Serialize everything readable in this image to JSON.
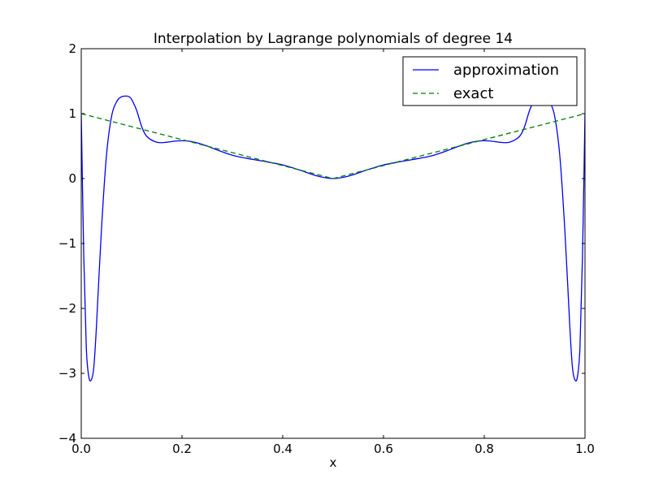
{
  "chart_data": {
    "type": "line",
    "title": "Interpolation by Lagrange polynomials of degree 14",
    "xlabel": "x",
    "ylabel": "",
    "xlim": [
      0.0,
      1.0
    ],
    "ylim": [
      -4,
      2
    ],
    "x_ticks": [
      "0.0",
      "0.2",
      "0.4",
      "0.6",
      "0.8",
      "1.0"
    ],
    "y_ticks": [
      "2",
      "1",
      "0",
      "−1",
      "−2",
      "−3",
      "−4"
    ],
    "grid": false,
    "legend_position": "top-right",
    "series": [
      {
        "name": "approximation",
        "color": "#0000ff",
        "style": "solid",
        "x": [
          0.0,
          0.005,
          0.01,
          0.015,
          0.02,
          0.025,
          0.03,
          0.04,
          0.05,
          0.06,
          0.07,
          0.08,
          0.09,
          0.095,
          0.1,
          0.11,
          0.12,
          0.13,
          0.15,
          0.17,
          0.19,
          0.21,
          0.23,
          0.25,
          0.27,
          0.3,
          0.33,
          0.36,
          0.4,
          0.43,
          0.46,
          0.48,
          0.5,
          0.52,
          0.54,
          0.57,
          0.6,
          0.64,
          0.67,
          0.7,
          0.73,
          0.75,
          0.77,
          0.79,
          0.81,
          0.83,
          0.85,
          0.87,
          0.88,
          0.89,
          0.9,
          0.905,
          0.91,
          0.92,
          0.93,
          0.94,
          0.95,
          0.96,
          0.97,
          0.975,
          0.98,
          0.985,
          0.99,
          0.995,
          1.0
        ],
        "y": [
          1.0,
          -1.2,
          -2.6,
          -3.05,
          -3.1,
          -2.9,
          -2.3,
          -0.8,
          0.35,
          0.95,
          1.18,
          1.26,
          1.27,
          1.26,
          1.22,
          1.05,
          0.8,
          0.65,
          0.56,
          0.56,
          0.58,
          0.58,
          0.55,
          0.5,
          0.44,
          0.36,
          0.31,
          0.27,
          0.21,
          0.14,
          0.06,
          0.02,
          0.0,
          0.02,
          0.06,
          0.14,
          0.21,
          0.27,
          0.31,
          0.36,
          0.44,
          0.5,
          0.55,
          0.58,
          0.58,
          0.56,
          0.56,
          0.65,
          0.8,
          1.05,
          1.22,
          1.26,
          1.27,
          1.26,
          1.18,
          0.95,
          0.35,
          -0.8,
          -2.3,
          -2.9,
          -3.1,
          -3.05,
          -2.6,
          -1.2,
          1.0
        ]
      },
      {
        "name": "exact",
        "color": "#007f00",
        "style": "dashed",
        "x": [
          0.0,
          0.5,
          1.0
        ],
        "y": [
          1.0,
          0.0,
          1.0
        ]
      }
    ]
  }
}
